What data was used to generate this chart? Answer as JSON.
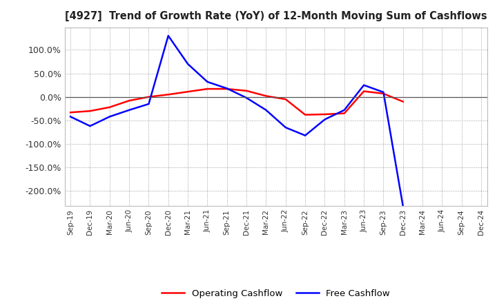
{
  "title": "[4927]  Trend of Growth Rate (YoY) of 12-Month Moving Sum of Cashflows",
  "x_labels": [
    "Sep-19",
    "Dec-19",
    "Mar-20",
    "Jun-20",
    "Sep-20",
    "Dec-20",
    "Mar-21",
    "Jun-21",
    "Sep-21",
    "Dec-21",
    "Mar-22",
    "Jun-22",
    "Sep-22",
    "Dec-22",
    "Mar-23",
    "Jun-23",
    "Sep-23",
    "Dec-23",
    "Mar-24",
    "Jun-24",
    "Sep-24",
    "Dec-24"
  ],
  "operating_cashflow": [
    -33,
    -30,
    -22,
    -8,
    0,
    5,
    11,
    17,
    17,
    13,
    2,
    -5,
    -38,
    -37,
    -35,
    12,
    7,
    -10,
    null,
    null,
    null,
    null
  ],
  "free_cashflow": [
    -42,
    -62,
    -42,
    -28,
    -15,
    130,
    70,
    32,
    18,
    -2,
    -28,
    -65,
    -82,
    -48,
    -28,
    25,
    10,
    -232,
    null,
    null,
    null,
    null
  ],
  "ylim": [
    -232,
    148
  ],
  "yticks": [
    -200,
    -150,
    -100,
    -50,
    0,
    50,
    100
  ],
  "operating_color": "#FF0000",
  "free_color": "#0000FF",
  "bg_color": "#FFFFFF",
  "plot_bg_color": "#FFFFFF",
  "grid_color": "#999999",
  "legend_labels": [
    "Operating Cashflow",
    "Free Cashflow"
  ]
}
